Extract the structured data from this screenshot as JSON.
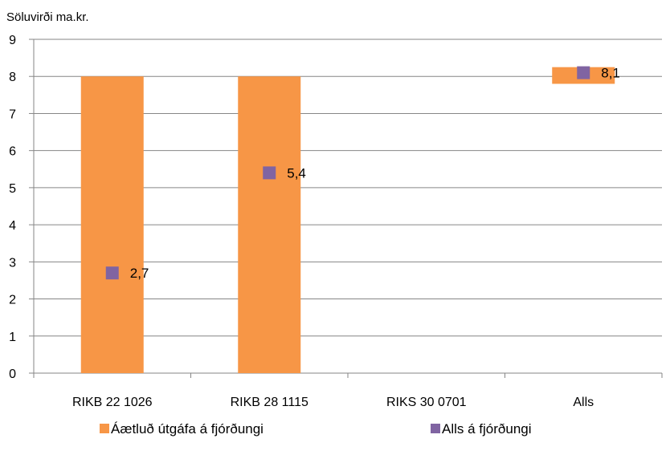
{
  "chart_data": {
    "type": "bar",
    "ylabel": "Söluvirði ma.kr.",
    "ylim": [
      0,
      9
    ],
    "yticks": [
      "0",
      "1",
      "2",
      "3",
      "4",
      "5",
      "6",
      "7",
      "8",
      "9"
    ],
    "categories": [
      "RIKB 22 1026",
      "RIKB 28 1115",
      "RIKS 30 0701",
      "Alls"
    ],
    "grid": true,
    "legend_position": "bottom",
    "series": [
      {
        "name": "Áætluð útgáfa á fjórðungi",
        "kind": "bar-range",
        "color": "#F79646",
        "ranges": [
          [
            0,
            8
          ],
          [
            0,
            8
          ],
          null,
          [
            7.8,
            8.25
          ]
        ]
      },
      {
        "name": "Alls á fjórðungi",
        "kind": "marker",
        "color": "#8064A2",
        "values": [
          2.7,
          5.4,
          null,
          8.1
        ],
        "labels": [
          "2,7",
          "5,4",
          "",
          "8,1"
        ]
      }
    ]
  }
}
